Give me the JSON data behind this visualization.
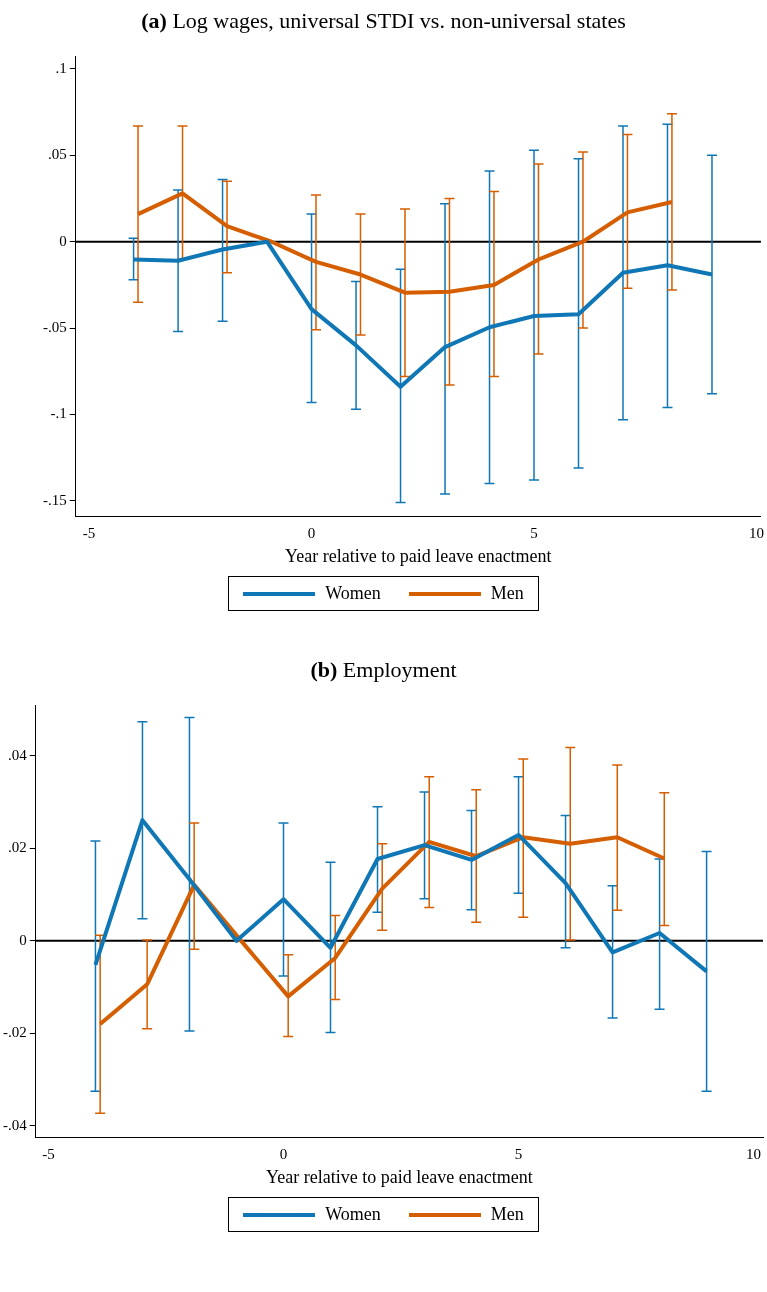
{
  "chart_data": [
    {
      "type": "line",
      "title": "(a) Log wages, universal STDI vs. non-universal states",
      "xlabel": "Year relative to paid leave enactment",
      "xlim": [
        -5.3,
        10.1
      ],
      "xticks": [
        -5,
        0,
        5,
        10
      ],
      "ylim": [
        -0.159,
        0.1075
      ],
      "yticks": [
        {
          "value": 0.1,
          "label": ".1"
        },
        {
          "value": 0.05,
          "label": ".05"
        },
        {
          "value": 0,
          "label": "0"
        },
        {
          "value": -0.05,
          "label": "-.05"
        },
        {
          "value": -0.1,
          "label": "-.1"
        },
        {
          "value": -0.15,
          "label": "-.15"
        }
      ],
      "grid": false,
      "legend": "bottom",
      "marker": "none",
      "line_style": "solid",
      "ref_lines": [
        {
          "axis": "y",
          "value": 0,
          "label": null,
          "color": "#000000"
        }
      ],
      "series": [
        {
          "name": "Women",
          "color": "#0f77b5",
          "x": [
            -4,
            -3,
            -2,
            -1,
            0,
            1,
            2,
            3,
            4,
            5,
            6,
            7,
            8,
            9
          ],
          "values": [
            -0.0103,
            -0.011,
            -0.0045,
            0,
            -0.039,
            -0.06,
            -0.084,
            -0.061,
            -0.0495,
            -0.043,
            -0.042,
            -0.018,
            -0.0136,
            -0.019
          ],
          "errors": [
            [
              -0.022,
              0.002
            ],
            [
              -0.052,
              0.03
            ],
            [
              -0.046,
              0.036
            ],
            null,
            [
              -0.093,
              0.016
            ],
            [
              -0.097,
              -0.023
            ],
            [
              -0.151,
              -0.016
            ],
            [
              -0.146,
              0.022
            ],
            [
              -0.14,
              0.041
            ],
            [
              -0.138,
              0.053
            ],
            [
              -0.131,
              0.048
            ],
            [
              -0.103,
              0.067
            ],
            [
              -0.096,
              0.068
            ],
            [
              -0.088,
              0.05
            ]
          ]
        },
        {
          "name": "Men",
          "color": "#d55e00",
          "x": [
            -3.9,
            -2.9,
            -1.9,
            -0.9,
            0.1,
            1.1,
            2.1,
            3.1,
            4.1,
            5.1,
            6.1,
            7.1,
            8.1
          ],
          "values": [
            0.016,
            0.028,
            0.009,
            0,
            -0.0117,
            -0.019,
            -0.0295,
            -0.029,
            -0.025,
            -0.0103,
            0,
            0.017,
            0.023
          ],
          "errors": [
            [
              -0.035,
              0.067
            ],
            [
              -0.01,
              0.067
            ],
            [
              -0.018,
              0.035
            ],
            null,
            [
              -0.051,
              0.027
            ],
            [
              -0.054,
              0.016
            ],
            [
              -0.078,
              0.019
            ],
            [
              -0.083,
              0.025
            ],
            [
              -0.078,
              0.029
            ],
            [
              -0.065,
              0.045
            ],
            [
              -0.05,
              0.052
            ],
            [
              -0.027,
              0.062
            ],
            [
              -0.028,
              0.074
            ]
          ]
        }
      ]
    },
    {
      "type": "line",
      "title": "(b) Employment",
      "xlabel": "Year relative to paid leave enactment",
      "xlim": [
        -5.27,
        10.2
      ],
      "xticks": [
        -5,
        0,
        5,
        10
      ],
      "ylim": [
        -0.0425,
        0.051
      ],
      "yticks": [
        {
          "value": 0.04,
          "label": ".04"
        },
        {
          "value": 0.02,
          "label": ".02"
        },
        {
          "value": 0,
          "label": "0"
        },
        {
          "value": -0.02,
          "label": "-.02"
        },
        {
          "value": -0.04,
          "label": "-.04"
        }
      ],
      "grid": false,
      "legend": "bottom",
      "marker": "none",
      "line_style": "solid",
      "ref_lines": [
        {
          "axis": "y",
          "value": 0,
          "label": null,
          "color": "#000000"
        }
      ],
      "series": [
        {
          "name": "Women",
          "color": "#0f77b5",
          "x": [
            -4,
            -3,
            -2,
            -1,
            0,
            1,
            2,
            3,
            4,
            5,
            6,
            7,
            8,
            9
          ],
          "values": [
            -0.0052,
            0.0261,
            0.0133,
            0,
            0.009,
            -0.0015,
            0.0177,
            0.0207,
            0.0175,
            0.0229,
            0.0125,
            -0.0025,
            0.0017,
            -0.0066
          ],
          "errors": [
            [
              -0.0325,
              0.0216
            ],
            [
              0.0048,
              0.0474
            ],
            [
              -0.0195,
              0.0483
            ],
            null,
            [
              -0.0076,
              0.0255
            ],
            [
              -0.0198,
              0.017
            ],
            [
              0.0062,
              0.029
            ],
            [
              0.0091,
              0.0322
            ],
            [
              0.0067,
              0.0282
            ],
            [
              0.0103,
              0.0355
            ],
            [
              -0.0015,
              0.0271
            ],
            [
              -0.0167,
              0.0119
            ],
            [
              -0.0148,
              0.0177
            ],
            [
              -0.0325,
              0.0193
            ]
          ]
        },
        {
          "name": "Men",
          "color": "#d55e00",
          "x": [
            -3.9,
            -2.9,
            -1.9,
            -0.9,
            0.1,
            1.1,
            2.1,
            3.1,
            4.1,
            5.1,
            6.1,
            7.1,
            8.1
          ],
          "values": [
            -0.018,
            -0.0094,
            0.0121,
            0,
            -0.012,
            -0.0037,
            0.0113,
            0.0214,
            0.0183,
            0.0224,
            0.021,
            0.0224,
            0.0178
          ],
          "errors": [
            [
              -0.0373,
              0.0012
            ],
            [
              -0.019,
              0.0002
            ],
            [
              -0.0018,
              0.0255
            ],
            null,
            [
              -0.0207,
              -0.003
            ],
            [
              -0.0127,
              0.0055
            ],
            [
              0.0023,
              0.021
            ],
            [
              0.0072,
              0.0355
            ],
            [
              0.004,
              0.0327
            ],
            [
              0.0051,
              0.0393
            ],
            [
              0.0002,
              0.0418
            ],
            [
              0.0066,
              0.038
            ],
            [
              0.0033,
              0.032
            ]
          ]
        }
      ]
    }
  ]
}
